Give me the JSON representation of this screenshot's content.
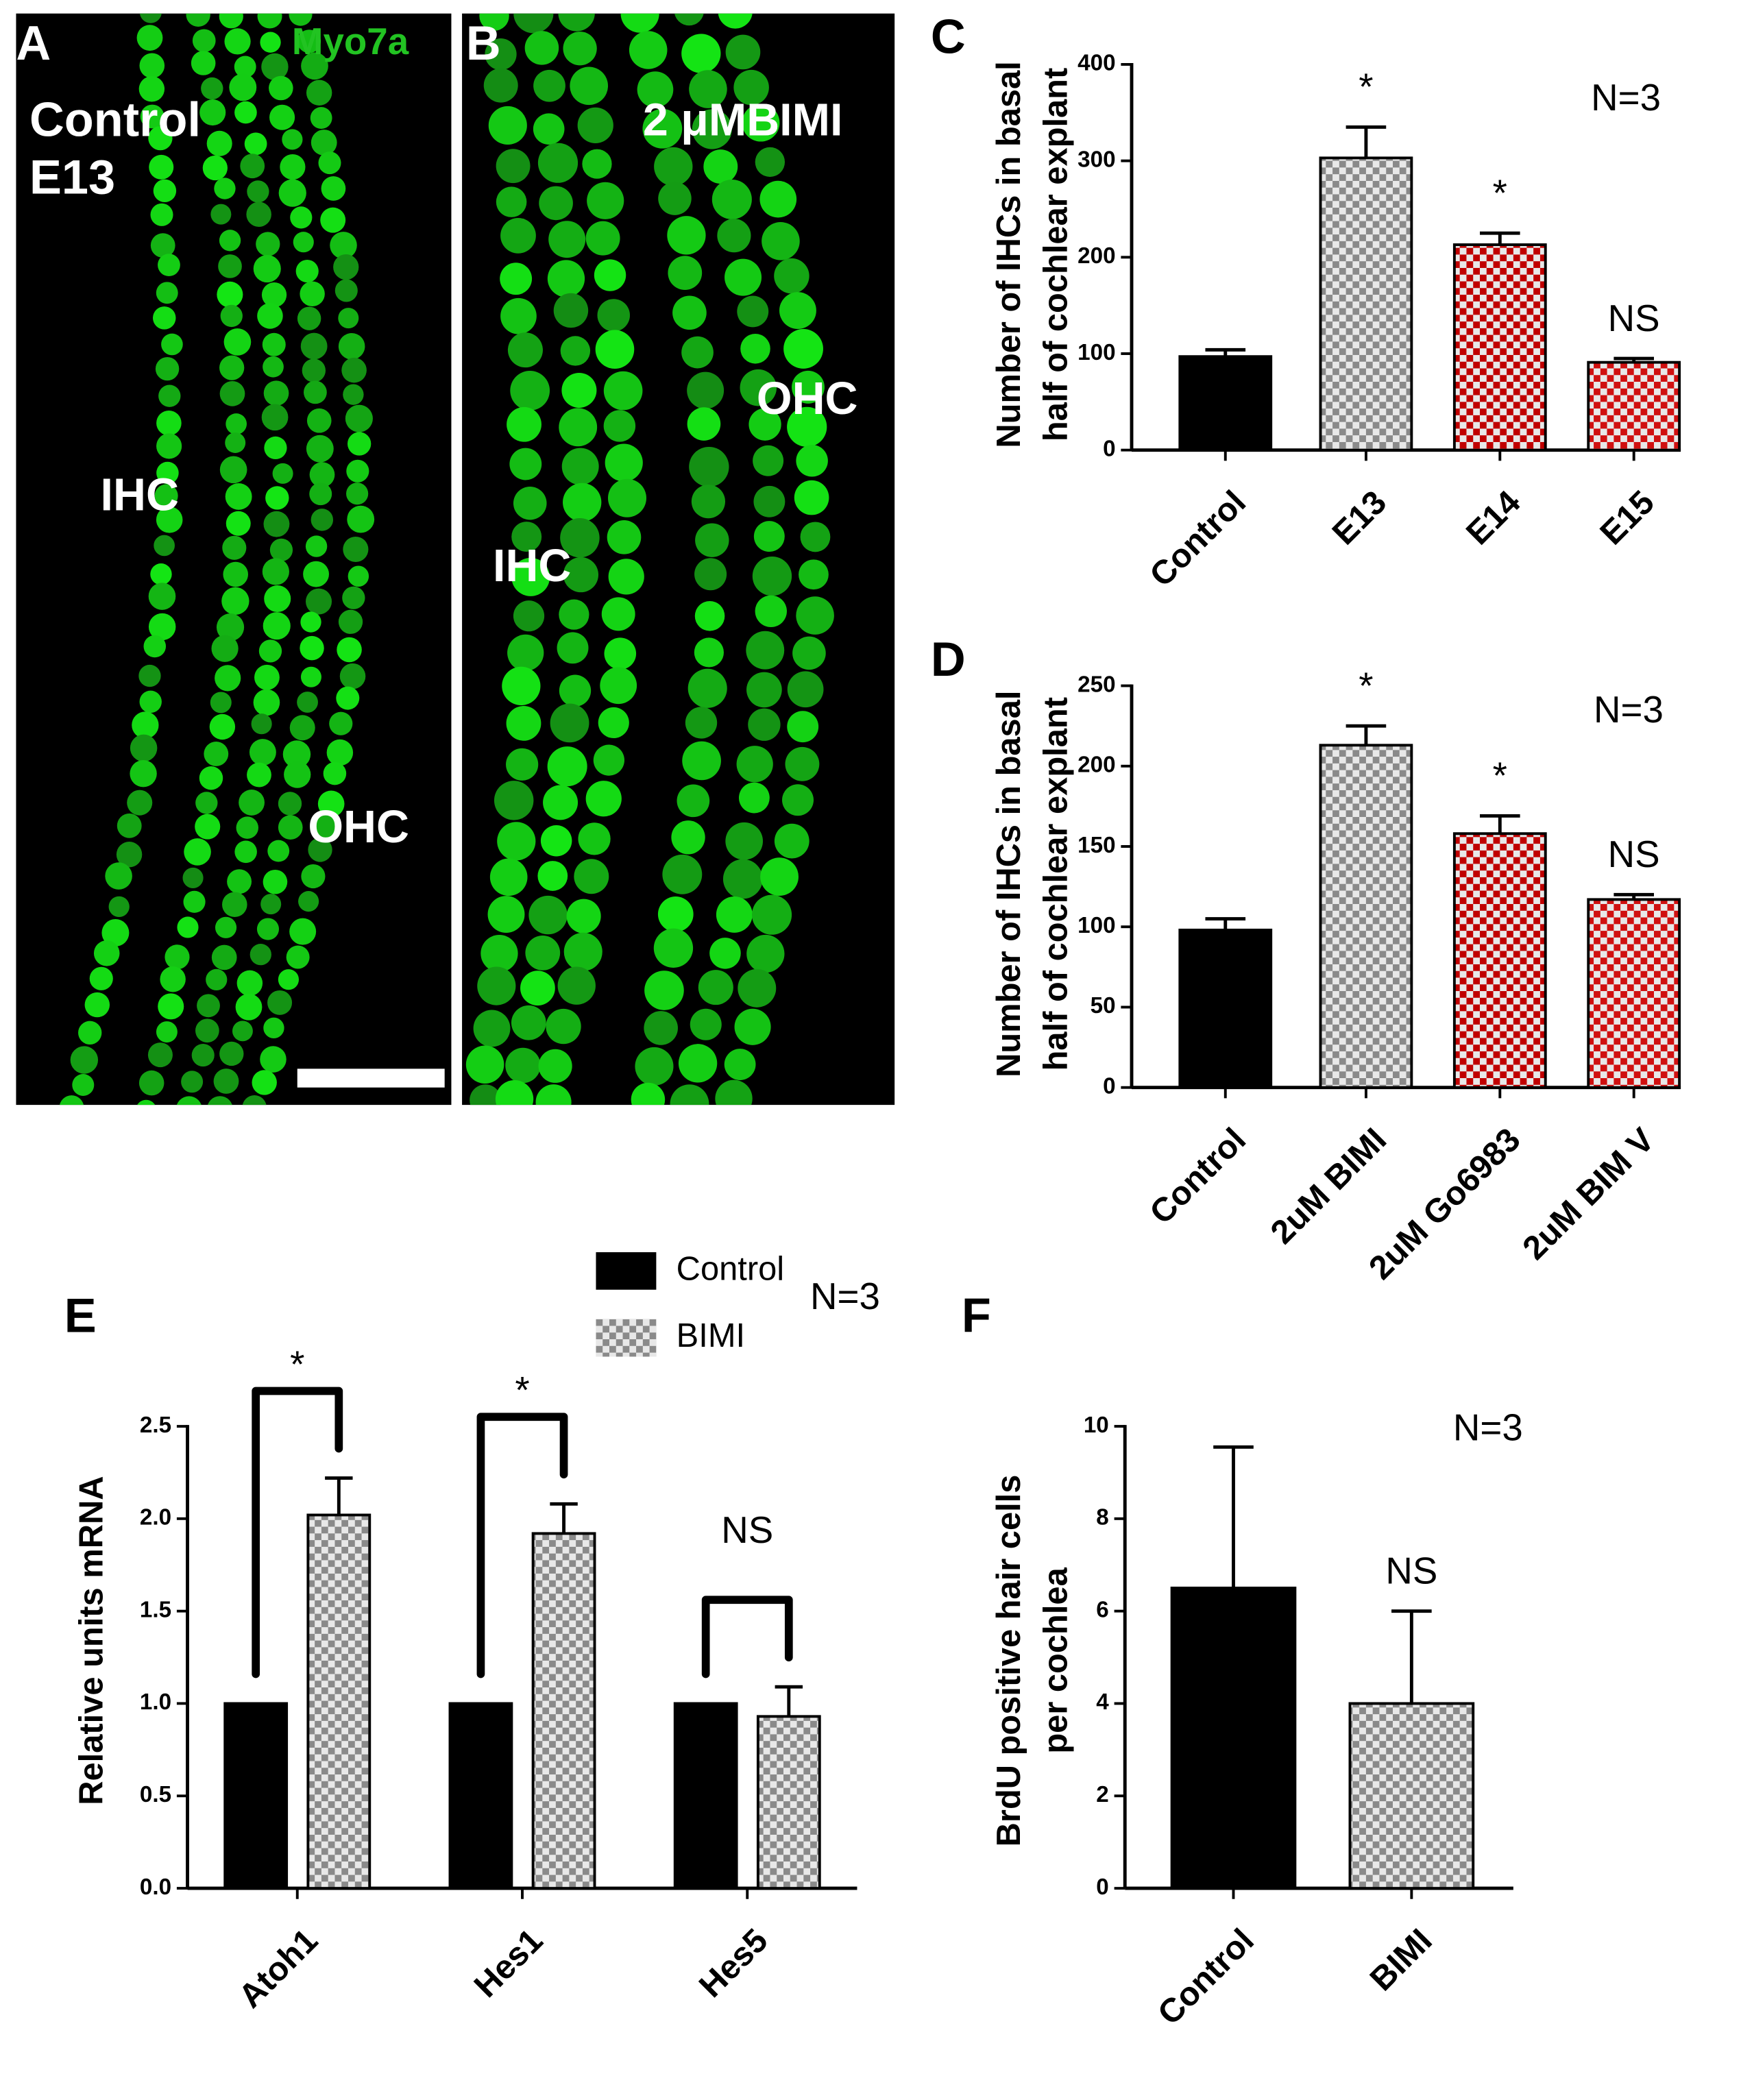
{
  "panels": [
    {
      "label": "A",
      "marker": "Myo7a",
      "condition": [
        "Control",
        "E13"
      ],
      "cell_labels": [
        "IHC",
        "OHC"
      ]
    },
    {
      "label": "B",
      "condition": [
        "2 μMBIMI"
      ],
      "cell_labels": [
        "IHC",
        "OHC"
      ]
    }
  ],
  "chart_data": [
    {
      "type": "bar",
      "panel_label": "C",
      "ylabel": [
        "Number of IHCs in basal",
        "half of cochlear explant"
      ],
      "categories": [
        "Control",
        "E13",
        "E14",
        "E15"
      ],
      "values": [
        97,
        303,
        213,
        91
      ],
      "errors": [
        7,
        32,
        12,
        4
      ],
      "colors": [
        "#000000",
        "#8a8a8a",
        "#c00000",
        "#d01010"
      ],
      "patterns": [
        "solid",
        "checker",
        "checker",
        "checker"
      ],
      "significance": [
        null,
        "*",
        "*",
        "NS"
      ],
      "note": "N=3",
      "ylim": [
        0,
        400
      ],
      "yticks": [
        0,
        100,
        200,
        300,
        400
      ]
    },
    {
      "type": "bar",
      "panel_label": "D",
      "ylabel": [
        "Number of IHCs in basal",
        "half of cochlear explant"
      ],
      "categories": [
        "Control",
        "2uM BIMI",
        "2uM Go6983",
        "2uM BIM V"
      ],
      "values": [
        98,
        213,
        158,
        117
      ],
      "errors": [
        7,
        12,
        11,
        3
      ],
      "colors": [
        "#000000",
        "#8a8a8a",
        "#c00000",
        "#d01010"
      ],
      "patterns": [
        "solid",
        "checker",
        "checker",
        "checker"
      ],
      "significance": [
        null,
        "*",
        "*",
        "NS"
      ],
      "note": "N=3",
      "ylim": [
        0,
        250
      ],
      "yticks": [
        0,
        50,
        100,
        150,
        200,
        250
      ]
    },
    {
      "type": "grouped_bar",
      "panel_label": "E",
      "ylabel": [
        "Relative units mRNA"
      ],
      "categories": [
        "Atoh1",
        "Hes1",
        "Hes5"
      ],
      "series": [
        {
          "name": "Control",
          "color": "#000000",
          "pattern": "solid",
          "values": [
            1,
            1,
            1
          ],
          "errors": [
            null,
            null,
            null
          ]
        },
        {
          "name": "BIMI",
          "color": "#8a8a8a",
          "pattern": "checker",
          "values": [
            2.02,
            1.92,
            0.93
          ],
          "errors": [
            0.2,
            0.16,
            0.16
          ]
        }
      ],
      "significance": [
        "*",
        "*",
        "NS"
      ],
      "note": "N=3",
      "ylim": [
        0,
        2.5
      ],
      "yticks": [
        {
          "value": 0,
          "label": "0.0"
        },
        0.5,
        {
          "value": 1,
          "label": "1.0"
        },
        1.5,
        {
          "value": 2,
          "label": "2.0"
        },
        2.5
      ]
    },
    {
      "type": "bar",
      "panel_label": "F",
      "ylabel": [
        "BrdU positive hair cells",
        "per cochlea"
      ],
      "categories": [
        "Control",
        "BIMI"
      ],
      "values": [
        6.5,
        4
      ],
      "errors": [
        3.05,
        2
      ],
      "colors": [
        "#000000",
        "#8a8a8a"
      ],
      "patterns": [
        "solid",
        "checker"
      ],
      "significance": [
        null,
        "NS"
      ],
      "note": "N=3",
      "ylim": [
        0,
        10
      ],
      "yticks": [
        0,
        2,
        4,
        6,
        8,
        10
      ]
    }
  ]
}
